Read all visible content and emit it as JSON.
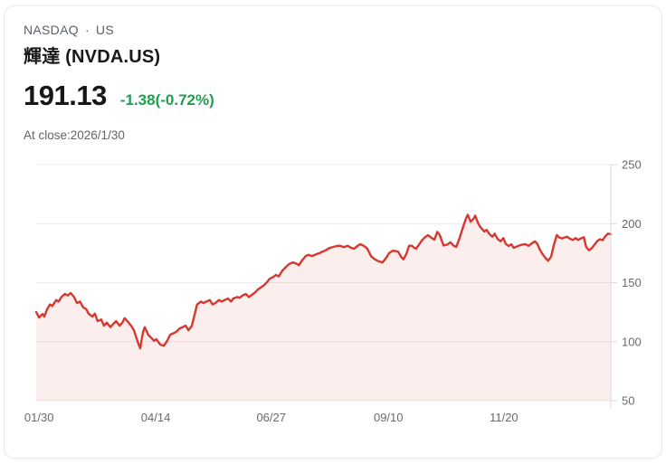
{
  "header": {
    "exchange": "NASDAQ",
    "separator": "·",
    "region": "US",
    "title": "輝達 (NVDA.US)",
    "price": "191.13",
    "change": "-1.38(-0.72%)",
    "close_note": "At close:2026/1/30"
  },
  "colors": {
    "change_green": "#1ea04f",
    "line_red": "#d6382f",
    "area_fill": "rgba(214,56,47,0.085)",
    "grid": "#ececec",
    "axis": "#d9d9d9",
    "tick_label": "#66696d",
    "muted_text": "#5b6066",
    "card_border": "#e8eaee"
  },
  "chart_data": {
    "type": "area",
    "title": "NVDA.US one-year daily closing price",
    "xlabel": "",
    "ylabel": "",
    "ylim": [
      50,
      250
    ],
    "yticks": [
      50,
      100,
      150,
      200,
      250
    ],
    "grid": "horizontal",
    "axis_position": "right",
    "legend": "none",
    "xticks": [
      {
        "t": 0.005,
        "label": "01/30"
      },
      {
        "t": 0.208,
        "label": "04/14"
      },
      {
        "t": 0.409,
        "label": "06/27"
      },
      {
        "t": 0.613,
        "label": "09/10"
      },
      {
        "t": 0.814,
        "label": "11/20"
      }
    ],
    "points": [
      [
        0,
        125
      ],
      [
        0.005,
        120.5
      ],
      [
        0.011,
        123.5
      ],
      [
        0.014,
        121.3
      ],
      [
        0.019,
        127.5
      ],
      [
        0.024,
        131.5
      ],
      [
        0.028,
        130.2
      ],
      [
        0.035,
        135.3
      ],
      [
        0.039,
        134
      ],
      [
        0.044,
        137.8
      ],
      [
        0.05,
        140.4
      ],
      [
        0.055,
        139.1
      ],
      [
        0.06,
        141.2
      ],
      [
        0.066,
        137.8
      ],
      [
        0.071,
        132.7
      ],
      [
        0.076,
        134
      ],
      [
        0.082,
        128.9
      ],
      [
        0.087,
        127.6
      ],
      [
        0.091,
        123.8
      ],
      [
        0.098,
        121.3
      ],
      [
        0.102,
        123.8
      ],
      [
        0.107,
        117.4
      ],
      [
        0.113,
        118.7
      ],
      [
        0.118,
        113.6
      ],
      [
        0.123,
        116.1
      ],
      [
        0.129,
        112.3
      ],
      [
        0.134,
        114.9
      ],
      [
        0.139,
        117.4
      ],
      [
        0.145,
        113.6
      ],
      [
        0.15,
        116.1
      ],
      [
        0.154,
        120
      ],
      [
        0.161,
        116.1
      ],
      [
        0.165,
        113.6
      ],
      [
        0.17,
        109.7
      ],
      [
        0.176,
        100.8
      ],
      [
        0.181,
        94.4
      ],
      [
        0.186,
        108.4
      ],
      [
        0.189,
        112.3
      ],
      [
        0.195,
        105.9
      ],
      [
        0.2,
        103.4
      ],
      [
        0.205,
        100.8
      ],
      [
        0.209,
        102.1
      ],
      [
        0.216,
        97.5
      ],
      [
        0.222,
        96.5
      ],
      [
        0.228,
        100.8
      ],
      [
        0.233,
        105.9
      ],
      [
        0.239,
        107.2
      ],
      [
        0.244,
        108.4
      ],
      [
        0.249,
        111
      ],
      [
        0.255,
        112.3
      ],
      [
        0.26,
        113.6
      ],
      [
        0.265,
        109.7
      ],
      [
        0.271,
        113.6
      ],
      [
        0.276,
        123.8
      ],
      [
        0.28,
        131.5
      ],
      [
        0.287,
        134
      ],
      [
        0.291,
        132.7
      ],
      [
        0.296,
        134
      ],
      [
        0.302,
        135.3
      ],
      [
        0.307,
        131.5
      ],
      [
        0.312,
        132.7
      ],
      [
        0.318,
        135.3
      ],
      [
        0.323,
        134
      ],
      [
        0.328,
        135.3
      ],
      [
        0.334,
        136.6
      ],
      [
        0.339,
        134
      ],
      [
        0.343,
        136.6
      ],
      [
        0.35,
        137.8
      ],
      [
        0.354,
        137.1
      ],
      [
        0.359,
        139.1
      ],
      [
        0.365,
        140.4
      ],
      [
        0.37,
        137.8
      ],
      [
        0.375,
        139.6
      ],
      [
        0.381,
        141.7
      ],
      [
        0.386,
        144.3
      ],
      [
        0.39,
        145.6
      ],
      [
        0.397,
        148.1
      ],
      [
        0.402,
        150.6
      ],
      [
        0.406,
        153.2
      ],
      [
        0.413,
        155
      ],
      [
        0.417,
        156.5
      ],
      [
        0.422,
        155.3
      ],
      [
        0.428,
        160
      ],
      [
        0.435,
        163.5
      ],
      [
        0.441,
        166
      ],
      [
        0.447,
        167.2
      ],
      [
        0.454,
        165.8
      ],
      [
        0.457,
        164.7
      ],
      [
        0.463,
        169
      ],
      [
        0.469,
        172.5
      ],
      [
        0.474,
        173.6
      ],
      [
        0.48,
        172.5
      ],
      [
        0.487,
        174
      ],
      [
        0.493,
        175
      ],
      [
        0.498,
        176.3
      ],
      [
        0.504,
        177.4
      ],
      [
        0.51,
        179.3
      ],
      [
        0.517,
        180.3
      ],
      [
        0.523,
        181
      ],
      [
        0.529,
        181.3
      ],
      [
        0.535,
        180
      ],
      [
        0.542,
        181.3
      ],
      [
        0.548,
        179.5
      ],
      [
        0.553,
        178.7
      ],
      [
        0.559,
        181
      ],
      [
        0.564,
        182.6
      ],
      [
        0.57,
        181.3
      ],
      [
        0.576,
        179
      ],
      [
        0.583,
        172.3
      ],
      [
        0.589,
        170
      ],
      [
        0.594,
        168.5
      ],
      [
        0.598,
        167.8
      ],
      [
        0.603,
        167.2
      ],
      [
        0.609,
        171
      ],
      [
        0.614,
        174.9
      ],
      [
        0.62,
        177
      ],
      [
        0.625,
        176.8
      ],
      [
        0.63,
        176.2
      ],
      [
        0.635,
        172
      ],
      [
        0.639,
        169.8
      ],
      [
        0.644,
        174
      ],
      [
        0.649,
        181.3
      ],
      [
        0.654,
        181.3
      ],
      [
        0.658,
        179.5
      ],
      [
        0.661,
        178.7
      ],
      [
        0.666,
        182
      ],
      [
        0.671,
        185.6
      ],
      [
        0.676,
        188.3
      ],
      [
        0.682,
        190.2
      ],
      [
        0.687,
        188.3
      ],
      [
        0.693,
        186.4
      ],
      [
        0.698,
        193
      ],
      [
        0.702,
        190.5
      ],
      [
        0.709,
        181.5
      ],
      [
        0.715,
        182.2
      ],
      [
        0.721,
        184.2
      ],
      [
        0.726,
        181.5
      ],
      [
        0.731,
        180.2
      ],
      [
        0.737,
        188
      ],
      [
        0.743,
        197.2
      ],
      [
        0.748,
        204.5
      ],
      [
        0.751,
        207.5
      ],
      [
        0.756,
        201.6
      ],
      [
        0.761,
        204
      ],
      [
        0.764,
        206.8
      ],
      [
        0.769,
        200.5
      ],
      [
        0.773,
        197
      ],
      [
        0.78,
        193.4
      ],
      [
        0.784,
        194.7
      ],
      [
        0.789,
        191
      ],
      [
        0.794,
        188.9
      ],
      [
        0.798,
        191.5
      ],
      [
        0.803,
        187
      ],
      [
        0.808,
        185.1
      ],
      [
        0.813,
        187.7
      ],
      [
        0.817,
        183
      ],
      [
        0.822,
        181
      ],
      [
        0.827,
        182.5
      ],
      [
        0.831,
        179.5
      ],
      [
        0.836,
        180.5
      ],
      [
        0.841,
        181.5
      ],
      [
        0.847,
        182.3
      ],
      [
        0.852,
        182.6
      ],
      [
        0.857,
        181.2
      ],
      [
        0.863,
        183.5
      ],
      [
        0.868,
        185
      ],
      [
        0.872,
        183
      ],
      [
        0.877,
        177.5
      ],
      [
        0.882,
        173.6
      ],
      [
        0.887,
        170.5
      ],
      [
        0.891,
        168.6
      ],
      [
        0.896,
        172
      ],
      [
        0.901,
        182
      ],
      [
        0.906,
        190.3
      ],
      [
        0.91,
        188.3
      ],
      [
        0.915,
        187.5
      ],
      [
        0.92,
        188.3
      ],
      [
        0.924,
        188.9
      ],
      [
        0.929,
        187.2
      ],
      [
        0.934,
        186.2
      ],
      [
        0.939,
        187.8
      ],
      [
        0.943,
        186.2
      ],
      [
        0.948,
        187.5
      ],
      [
        0.953,
        188.5
      ],
      [
        0.957,
        180.5
      ],
      [
        0.962,
        177.4
      ],
      [
        0.967,
        179.3
      ],
      [
        0.972,
        182.3
      ],
      [
        0.976,
        185
      ],
      [
        0.981,
        186.8
      ],
      [
        0.986,
        186
      ],
      [
        0.99,
        189
      ],
      [
        0.995,
        191.5
      ],
      [
        1,
        191.1
      ]
    ]
  }
}
